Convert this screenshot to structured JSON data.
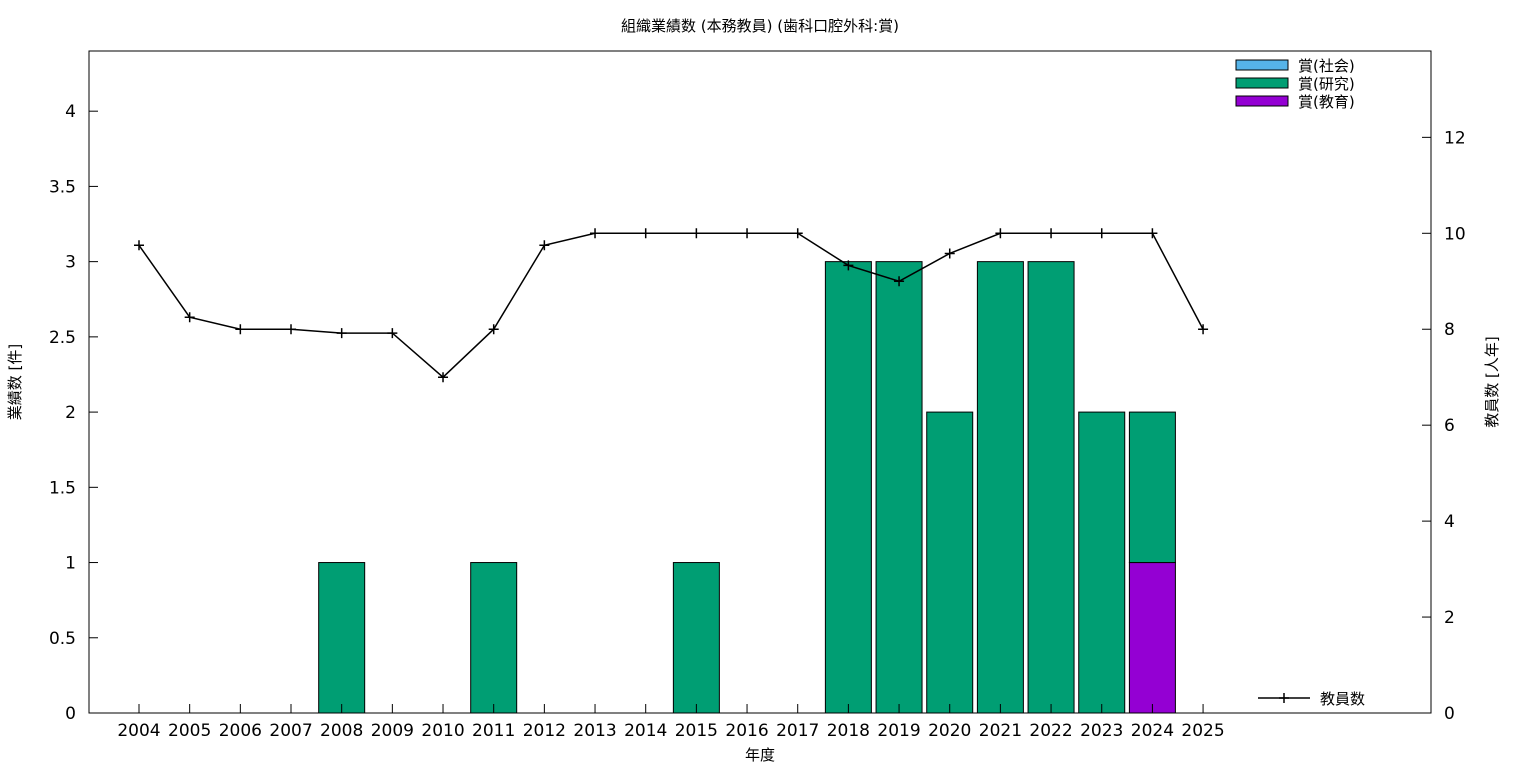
{
  "chart_data": {
    "type": "bar",
    "title": "組織業績数 (本務教員) (歯科口腔外科:賞)",
    "xlabel": "年度",
    "ylabel": "業績数 [件]",
    "y2label": "教員数 [人年]",
    "categories": [
      "2004",
      "2005",
      "2006",
      "2007",
      "2008",
      "2009",
      "2010",
      "2011",
      "2012",
      "2013",
      "2014",
      "2015",
      "2016",
      "2017",
      "2018",
      "2019",
      "2020",
      "2021",
      "2022",
      "2023",
      "2024",
      "2025"
    ],
    "ylim": [
      0,
      4.4
    ],
    "yticks": [
      "0",
      "0.5",
      "1",
      "1.5",
      "2",
      "2.5",
      "3",
      "3.5",
      "4"
    ],
    "y2lim": [
      0,
      13.8
    ],
    "y2ticks": [
      "0",
      "2",
      "4",
      "6",
      "8",
      "10",
      "12"
    ],
    "stacked": true,
    "series": [
      {
        "name": "賞(教育)",
        "color": "#9400d3",
        "values": [
          0,
          0,
          0,
          0,
          0,
          0,
          0,
          0,
          0,
          0,
          0,
          0,
          0,
          0,
          0,
          0,
          0,
          0,
          0,
          0,
          1,
          0
        ]
      },
      {
        "name": "賞(研究)",
        "color": "#009e73",
        "values": [
          0,
          0,
          0,
          0,
          1,
          0,
          0,
          1,
          0,
          0,
          0,
          1,
          0,
          0,
          3,
          3,
          2,
          3,
          3,
          2,
          1,
          0
        ]
      },
      {
        "name": "賞(社会)",
        "color": "#56b4e9",
        "values": [
          0,
          0,
          0,
          0,
          0,
          0,
          0,
          0,
          0,
          0,
          0,
          0,
          0,
          0,
          0,
          0,
          0,
          0,
          0,
          0,
          0,
          0
        ]
      }
    ],
    "legend_order": [
      "賞(社会)",
      "賞(研究)",
      "賞(教育)"
    ],
    "legend_position": "top-right",
    "line_series": {
      "name": "教員数",
      "axis": "y2",
      "color": "#000000",
      "values": [
        9.75,
        8.25,
        8,
        8,
        7.92,
        7.92,
        7,
        8,
        9.75,
        10,
        10,
        10,
        10,
        10,
        9.33,
        9,
        9.58,
        10,
        10,
        10,
        10,
        8
      ]
    }
  }
}
